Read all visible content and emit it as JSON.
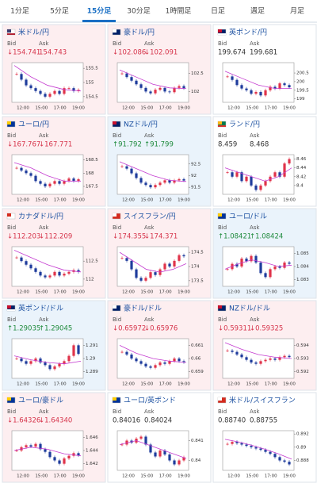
{
  "tabs": [
    "1分足",
    "5分足",
    "15分足",
    "30分足",
    "1時間足",
    "日足",
    "週足",
    "月足"
  ],
  "active_tab": 2,
  "bid_label": "Bid",
  "ask_label": "Ask",
  "chart_xticks": [
    "12:00",
    "15:00",
    "17:00",
    "19:00"
  ],
  "up_candle_color": "#e0334a",
  "down_candle_color": "#1f3c9c",
  "ma_color": "#c43bd0",
  "cards": [
    {
      "pair": "米ドル/円",
      "flag": [
        "#ffffff",
        "#3c3b6e",
        "#b22234"
      ],
      "background": "#fdeef0",
      "value_color": "#d6334a",
      "bid": "↓154.741",
      "ask": "154.743",
      "chart": {
        "ylim": [
          154.3,
          155.7
        ],
        "yticks": [
          155.5,
          155,
          154.5
        ],
        "closes": [
          155.3,
          155.1,
          154.9,
          154.8,
          154.7,
          154.6,
          154.5,
          154.6,
          154.7,
          154.6,
          154.8,
          154.8,
          154.7,
          154.74
        ],
        "ma": [
          155.6,
          155.2,
          154.9,
          154.75,
          154.7
        ]
      }
    },
    {
      "pair": "豪ドル/円",
      "flag": [
        "#012169",
        "#ffffff"
      ],
      "background": "#fdeef0",
      "value_color": "#d6334a",
      "bid": "↓102.086",
      "ask": "↓102.091",
      "chart": {
        "ylim": [
          101.7,
          102.8
        ],
        "yticks": [
          102.5,
          102
        ],
        "closes": [
          102.5,
          102.4,
          102.3,
          102.2,
          102.1,
          102.0,
          101.95,
          102.05,
          102.1,
          102.0,
          101.98,
          102.1,
          102.15,
          102.09
        ],
        "ma": [
          102.6,
          102.4,
          102.2,
          102.1,
          102.08
        ]
      }
    },
    {
      "pair": "英ポンド/円",
      "flag": [
        "#012169",
        "#c8102e",
        "#ffffff"
      ],
      "background": "#ffffff",
      "value_color": "#333333",
      "bid": "199.674",
      "ask": "199.681",
      "chart": {
        "ylim": [
          198.8,
          201.1
        ],
        "yticks": [
          200.5,
          200,
          199.5,
          199
        ],
        "closes": [
          200.3,
          200.1,
          199.8,
          199.6,
          199.5,
          199.3,
          199.4,
          199.2,
          199.5,
          199.7,
          199.6,
          199.9,
          199.8,
          199.67
        ],
        "ma": [
          200.6,
          200.2,
          199.8,
          199.6,
          199.6
        ]
      }
    },
    {
      "pair": "ユーロ/円",
      "flag": [
        "#003399",
        "#ffcc00"
      ],
      "background": "#fdeef0",
      "value_color": "#d6334a",
      "bid": "↓167.767",
      "ask": "↓167.771",
      "chart": {
        "ylim": [
          167.2,
          168.7
        ],
        "yticks": [
          168.5,
          168,
          167.5
        ],
        "closes": [
          168.2,
          168.1,
          168.0,
          167.9,
          167.7,
          167.6,
          167.5,
          167.6,
          167.7,
          167.6,
          167.7,
          167.8,
          167.7,
          167.77
        ],
        "ma": [
          168.4,
          168.2,
          167.9,
          167.7,
          167.7
        ]
      }
    },
    {
      "pair": "NZドル/円",
      "flag": [
        "#012169",
        "#c8102e"
      ],
      "background": "#eaf3fb",
      "value_color": "#1e8a3c",
      "bid": "↑91.792",
      "ask": "↑91.799",
      "chart": {
        "ylim": [
          91.2,
          92.9
        ],
        "yticks": [
          92.5,
          92,
          91.5
        ],
        "closes": [
          92.4,
          92.3,
          92.1,
          91.9,
          91.7,
          91.6,
          91.5,
          91.6,
          91.7,
          91.8,
          91.7,
          91.8,
          91.85,
          91.79
        ],
        "ma": [
          92.6,
          92.3,
          92.0,
          91.8,
          91.75
        ]
      }
    },
    {
      "pair": "ランド/円",
      "flag": [
        "#007a4d",
        "#ffb612",
        "#de3831"
      ],
      "background": "#ffffff",
      "value_color": "#333333",
      "bid": "8.459",
      "ask": "8.468",
      "chart": {
        "ylim": [
          8.38,
          8.47
        ],
        "yticks": [
          8.46,
          8.44,
          8.42,
          8.4
        ],
        "closes": [
          8.43,
          8.42,
          8.43,
          8.41,
          8.42,
          8.4,
          8.39,
          8.4,
          8.41,
          8.42,
          8.43,
          8.42,
          8.45,
          8.46
        ],
        "ma": [
          8.44,
          8.43,
          8.42,
          8.41,
          8.42,
          8.44
        ]
      }
    },
    {
      "pair": "カナダドル/円",
      "flag": [
        "#ffffff",
        "#d52b1e"
      ],
      "background": "#fdeef0",
      "value_color": "#d6334a",
      "bid": "↓112.203",
      "ask": "↓112.209",
      "chart": {
        "ylim": [
          111.8,
          112.9
        ],
        "yticks": [
          112.5,
          112
        ],
        "closes": [
          112.6,
          112.5,
          112.4,
          112.3,
          112.2,
          112.1,
          112.05,
          112.1,
          112.2,
          112.1,
          112.15,
          112.2,
          112.25,
          112.2
        ],
        "ma": [
          112.8,
          112.6,
          112.4,
          112.25,
          112.2
        ]
      }
    },
    {
      "pair": "スイスフラン/円",
      "flag": [
        "#d52b1e",
        "#ffffff"
      ],
      "background": "#fdeef0",
      "value_color": "#d6334a",
      "bid": "↓174.355",
      "ask": "↓174.371",
      "chart": {
        "ylim": [
          173.3,
          174.7
        ],
        "yticks": [
          174.5,
          174,
          173.5
        ],
        "closes": [
          174.3,
          174.2,
          173.9,
          173.6,
          173.5,
          173.6,
          173.8,
          173.7,
          173.9,
          174.1,
          174.0,
          174.2,
          174.4,
          174.36
        ],
        "ma": [
          174.5,
          174.2,
          173.9,
          173.8,
          173.9,
          174.1
        ]
      }
    },
    {
      "pair": "ユーロ/ドル",
      "flag": [
        "#003399",
        "#ffcc00"
      ],
      "background": "#eaf3fb",
      "value_color": "#1e8a3c",
      "bid": "↑1.08421",
      "ask": "↑1.08424",
      "chart": {
        "ylim": [
          1.0825,
          1.0855
        ],
        "yticks": [
          1.085,
          1.084,
          1.083
        ],
        "closes": [
          1.0838,
          1.0842,
          1.084,
          1.0846,
          1.0844,
          1.0848,
          1.0843,
          1.0835,
          1.0832,
          1.0838,
          1.084,
          1.0839,
          1.0843,
          1.08421
        ],
        "ma": [
          1.0838,
          1.0842,
          1.0845,
          1.0843,
          1.084,
          1.0841
        ]
      }
    },
    {
      "pair": "英ポンド/ドル",
      "flag": [
        "#012169",
        "#c8102e",
        "#ffffff"
      ],
      "background": "#eaf3fb",
      "value_color": "#1e8a3c",
      "bid": "↑1.29035",
      "ask": "↑1.29045",
      "chart": {
        "ylim": [
          1.2885,
          1.2915
        ],
        "yticks": [
          1.291,
          1.29,
          1.289
        ],
        "closes": [
          1.29,
          1.2898,
          1.2896,
          1.2898,
          1.29,
          1.2897,
          1.2895,
          1.2892,
          1.2894,
          1.2896,
          1.2898,
          1.2902,
          1.291,
          1.29035
        ],
        "ma": [
          1.2902,
          1.2899,
          1.2897,
          1.2896,
          1.2898
        ]
      }
    },
    {
      "pair": "豪ドル/ドル",
      "flag": [
        "#012169",
        "#ffffff"
      ],
      "background": "#fdeef0",
      "value_color": "#d6334a",
      "bid": "↓0.65972",
      "ask": "↓0.65976",
      "chart": {
        "ylim": [
          0.6585,
          0.6615
        ],
        "yticks": [
          0.661,
          0.66,
          0.659
        ],
        "closes": [
          0.6605,
          0.6603,
          0.66,
          0.6598,
          0.6596,
          0.6594,
          0.6593,
          0.6595,
          0.6597,
          0.6596,
          0.6598,
          0.66,
          0.6598,
          0.65972
        ],
        "ma": [
          0.661,
          0.6604,
          0.66,
          0.6598,
          0.6597
        ]
      }
    },
    {
      "pair": "NZドル/ドル",
      "flag": [
        "#012169",
        "#c8102e"
      ],
      "background": "#fdeef0",
      "value_color": "#d6334a",
      "bid": "↓0.59311",
      "ask": "↓0.59325",
      "chart": {
        "ylim": [
          0.5915,
          0.5945
        ],
        "yticks": [
          0.594,
          0.593,
          0.592
        ],
        "closes": [
          0.5936,
          0.5935,
          0.5933,
          0.5931,
          0.5929,
          0.5927,
          0.5926,
          0.5928,
          0.5929,
          0.593,
          0.5929,
          0.5931,
          0.5932,
          0.59311
        ],
        "ma": [
          0.5942,
          0.5937,
          0.5933,
          0.5931,
          0.593
        ]
      }
    },
    {
      "pair": "ユーロ/豪ドル",
      "flag": [
        "#003399",
        "#ffcc00"
      ],
      "background": "#fdeef0",
      "value_color": "#d6334a",
      "bid": "↓1.64326",
      "ask": "↓1.64340",
      "chart": {
        "ylim": [
          1.641,
          1.647
        ],
        "yticks": [
          1.646,
          1.644,
          1.642
        ],
        "closes": [
          1.644,
          1.6445,
          1.6448,
          1.6446,
          1.645,
          1.6442,
          1.6438,
          1.643,
          1.6425,
          1.642,
          1.6428,
          1.6432,
          1.6436,
          1.64326
        ],
        "ma": [
          1.644,
          1.6445,
          1.6442,
          1.6435,
          1.6432
        ]
      }
    },
    {
      "pair": "ユーロ/英ポンド",
      "flag": [
        "#003399",
        "#ffcc00"
      ],
      "background": "#ffffff",
      "value_color": "#333333",
      "bid": "0.84016",
      "ask": "0.84024",
      "chart": {
        "ylim": [
          0.8395,
          0.8415
        ],
        "yticks": [
          0.841,
          0.84
        ],
        "closes": [
          0.8408,
          0.841,
          0.8409,
          0.8411,
          0.8412,
          0.8408,
          0.8404,
          0.8402,
          0.8405,
          0.8403,
          0.84,
          0.8398,
          0.84,
          0.84016
        ],
        "ma": [
          0.8408,
          0.841,
          0.8407,
          0.8404,
          0.8401
        ]
      }
    },
    {
      "pair": "米ドル/スイスフラン",
      "flag": [
        "#d52b1e",
        "#ffffff"
      ],
      "background": "#ffffff",
      "value_color": "#333333",
      "bid": "0.88740",
      "ask": "0.88755",
      "chart": {
        "ylim": [
          0.8865,
          0.8925
        ],
        "yticks": [
          0.892,
          0.89,
          0.888
        ],
        "closes": [
          0.8905,
          0.8908,
          0.8906,
          0.8904,
          0.8902,
          0.89,
          0.8898,
          0.8896,
          0.8893,
          0.889,
          0.8885,
          0.888,
          0.8878,
          0.8874
        ],
        "ma": [
          0.8912,
          0.8908,
          0.8903,
          0.8897,
          0.889,
          0.8882
        ]
      }
    }
  ]
}
